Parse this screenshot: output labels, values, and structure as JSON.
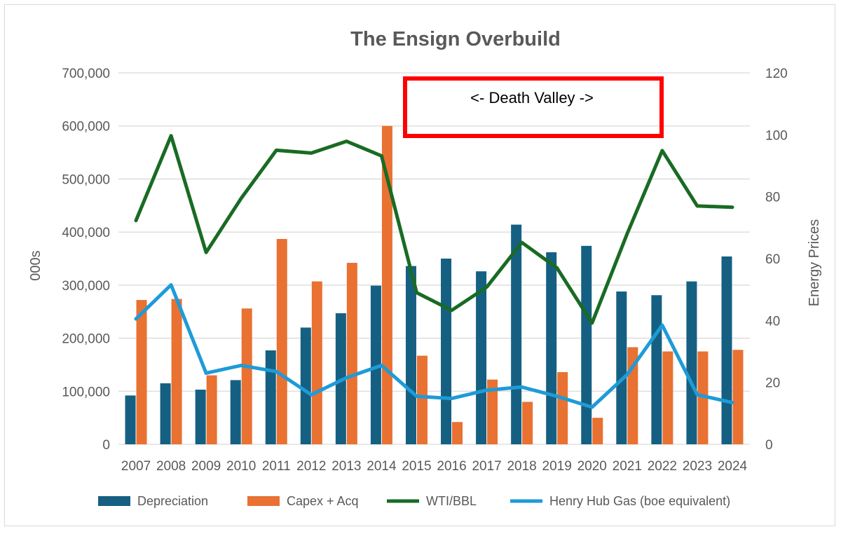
{
  "chart_data": {
    "type": "bar",
    "title": "The Ensign Overbuild",
    "categories": [
      "2007",
      "2008",
      "2009",
      "2010",
      "2011",
      "2012",
      "2013",
      "2014",
      "2015",
      "2016",
      "2017",
      "2018",
      "2019",
      "2020",
      "2021",
      "2022",
      "2023",
      "2024"
    ],
    "ylabel": "000s",
    "ylim": [
      0,
      700000
    ],
    "yticks": [
      0,
      100000,
      200000,
      300000,
      400000,
      500000,
      600000,
      700000
    ],
    "ytick_labels": [
      "0",
      "100,000",
      "200,000",
      "300,000",
      "400,000",
      "500,000",
      "600,000",
      "700,000"
    ],
    "y2label": "Energy Prices",
    "y2lim": [
      0,
      120
    ],
    "y2ticks": [
      0,
      20,
      40,
      60,
      80,
      100,
      120
    ],
    "y2tick_labels": [
      "0",
      "20",
      "40",
      "60",
      "80",
      "100",
      "120"
    ],
    "grid": true,
    "legend_position": "bottom",
    "series": [
      {
        "name": "Depreciation",
        "type": "bar",
        "axis": "left",
        "color": "#156082",
        "values": [
          92000,
          115000,
          103000,
          121000,
          177000,
          220000,
          247000,
          299000,
          336000,
          350000,
          326000,
          414000,
          362000,
          374000,
          288000,
          281000,
          307000,
          354000
        ]
      },
      {
        "name": "Capex + Acq",
        "type": "bar",
        "axis": "left",
        "color": "#E97132",
        "values": [
          272000,
          274000,
          130000,
          256000,
          387000,
          307000,
          342000,
          600000,
          167000,
          42000,
          122000,
          80000,
          136000,
          50000,
          183000,
          175000,
          175000,
          178000
        ]
      },
      {
        "name": "WTI/BBL",
        "type": "line",
        "axis": "right",
        "color": "#196B24",
        "values": [
          72.3,
          99.7,
          62.0,
          79.5,
          95.0,
          94.1,
          97.9,
          93.2,
          49.0,
          43.3,
          50.8,
          65.2,
          57.0,
          39.2,
          68.0,
          94.9,
          77.0,
          76.6
        ]
      },
      {
        "name": "Henry Hub Gas (boe equivalent)",
        "type": "line",
        "axis": "right",
        "color": "#1E9BD7",
        "values": [
          40.5,
          51.5,
          23.0,
          25.5,
          23.5,
          16.0,
          21.5,
          25.5,
          15.5,
          14.8,
          17.5,
          18.5,
          15.5,
          12.0,
          22.5,
          38.5,
          16.0,
          13.5
        ]
      }
    ],
    "annotations": [
      {
        "text": "<- Death Valley ->",
        "border_color": "#FF0000",
        "spans": [
          "2015",
          "2021"
        ]
      }
    ]
  }
}
